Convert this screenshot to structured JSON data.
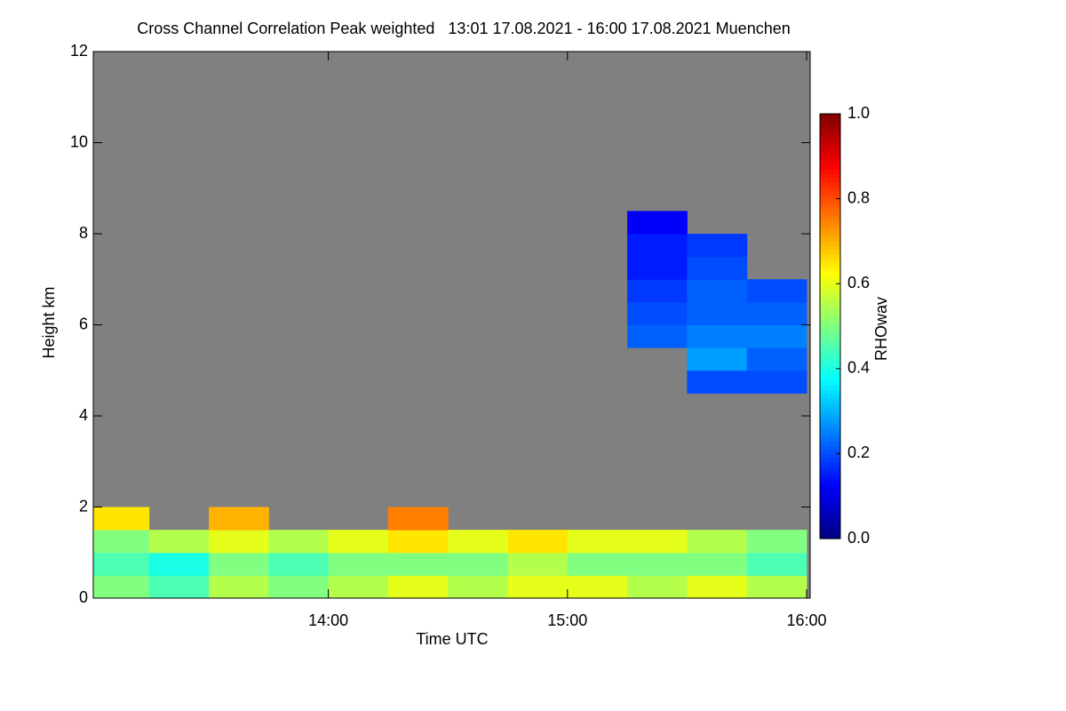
{
  "chart_data": {
    "type": "heatmap",
    "title": "Cross Channel Correlation Peak weighted   13:01 17.08.2021 - 16:00 17.08.2021 Muenchen",
    "x_label": "Time UTC",
    "y_label": "Height km",
    "background": "#808080",
    "xlim": [
      13.017,
      16.015
    ],
    "xticks": [
      {
        "value": 14,
        "label": "14:00"
      },
      {
        "value": 15,
        "label": "15:00"
      },
      {
        "value": 16,
        "label": "16:00"
      }
    ],
    "ylim": [
      0,
      12
    ],
    "yticks": [
      0,
      2,
      4,
      6,
      8,
      10,
      12
    ],
    "x": [
      13.125,
      13.375,
      13.625,
      13.875,
      14.125,
      14.375,
      14.625,
      14.875,
      15.125,
      15.375,
      15.625,
      15.875
    ],
    "y": [
      0.25,
      0.75,
      1.25,
      1.75,
      2.25,
      2.75,
      3.25,
      3.75,
      4.25,
      4.75,
      5.25,
      5.75,
      6.25,
      6.75,
      7.25,
      7.75,
      8.25,
      8.75,
      9.25,
      9.75,
      10.25,
      10.75,
      11.25,
      11.75
    ],
    "z": [
      [
        0.5,
        0.45,
        0.55,
        0.5,
        0.55,
        0.6,
        0.55,
        0.6,
        0.6,
        0.55,
        0.6,
        0.55
      ],
      [
        0.45,
        0.4,
        0.5,
        0.45,
        0.5,
        0.5,
        0.5,
        0.55,
        0.5,
        0.5,
        0.5,
        0.45
      ],
      [
        0.5,
        0.55,
        0.6,
        0.55,
        0.6,
        0.65,
        0.6,
        0.65,
        0.6,
        0.6,
        0.55,
        0.5
      ],
      [
        0.65,
        null,
        0.7,
        null,
        null,
        0.75,
        null,
        null,
        null,
        null,
        null,
        null
      ],
      [
        null,
        null,
        null,
        null,
        null,
        null,
        null,
        null,
        null,
        null,
        null,
        null
      ],
      [
        null,
        null,
        null,
        null,
        null,
        null,
        null,
        null,
        null,
        null,
        null,
        null
      ],
      [
        null,
        null,
        null,
        null,
        null,
        null,
        null,
        null,
        null,
        null,
        null,
        null
      ],
      [
        null,
        null,
        null,
        null,
        null,
        null,
        null,
        null,
        null,
        null,
        null,
        null
      ],
      [
        null,
        null,
        null,
        null,
        null,
        null,
        null,
        null,
        null,
        null,
        null,
        null
      ],
      [
        null,
        null,
        null,
        null,
        null,
        null,
        null,
        null,
        null,
        null,
        0.2,
        0.2
      ],
      [
        null,
        null,
        null,
        null,
        null,
        null,
        null,
        null,
        null,
        null,
        0.28,
        0.22
      ],
      [
        null,
        null,
        null,
        null,
        null,
        null,
        null,
        null,
        null,
        0.22,
        0.25,
        0.25
      ],
      [
        null,
        null,
        null,
        null,
        null,
        null,
        null,
        null,
        null,
        0.2,
        0.22,
        0.22
      ],
      [
        null,
        null,
        null,
        null,
        null,
        null,
        null,
        null,
        null,
        0.18,
        0.22,
        0.2
      ],
      [
        null,
        null,
        null,
        null,
        null,
        null,
        null,
        null,
        null,
        0.15,
        0.2,
        null
      ],
      [
        null,
        null,
        null,
        null,
        null,
        null,
        null,
        null,
        null,
        0.15,
        0.18,
        null
      ],
      [
        null,
        null,
        null,
        null,
        null,
        null,
        null,
        null,
        null,
        0.12,
        null,
        null
      ],
      [
        null,
        null,
        null,
        null,
        null,
        null,
        null,
        null,
        null,
        null,
        null,
        null
      ],
      [
        null,
        null,
        null,
        null,
        null,
        null,
        null,
        null,
        null,
        null,
        null,
        null
      ],
      [
        null,
        null,
        null,
        null,
        null,
        null,
        null,
        null,
        null,
        null,
        null,
        null
      ],
      [
        null,
        null,
        null,
        null,
        null,
        null,
        null,
        null,
        null,
        null,
        null,
        null
      ],
      [
        null,
        null,
        null,
        null,
        null,
        null,
        null,
        null,
        null,
        null,
        null,
        null
      ],
      [
        null,
        null,
        null,
        null,
        null,
        null,
        null,
        null,
        null,
        null,
        null,
        null
      ],
      [
        null,
        null,
        null,
        null,
        null,
        null,
        null,
        null,
        null,
        null,
        null,
        null
      ]
    ],
    "colorbar": {
      "label": "RHOwav",
      "colormap": "jet",
      "clim": [
        0,
        1
      ],
      "ticks": [
        {
          "value": 0,
          "label": "0.0"
        },
        0.2,
        0.4,
        0.6,
        0.8,
        {
          "value": 1,
          "label": "1.0"
        }
      ]
    }
  }
}
